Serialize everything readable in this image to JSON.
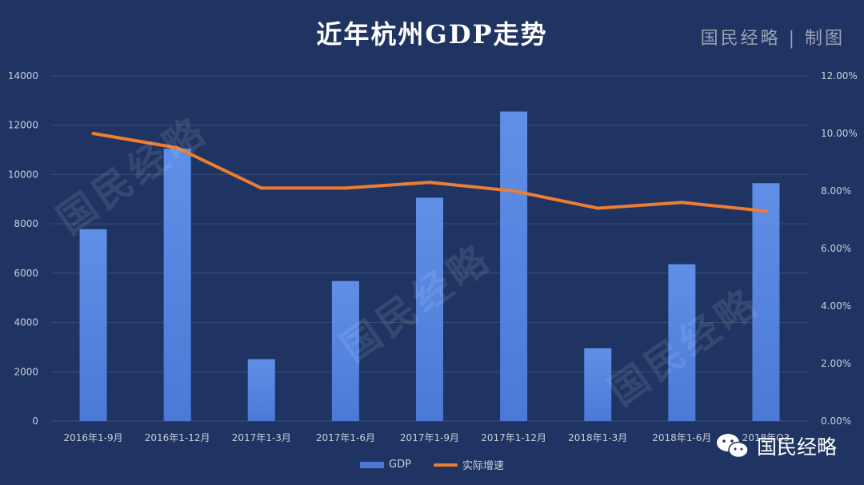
{
  "title": "近年杭州GDP走势",
  "brand_tag": "国民经略 | 制图",
  "footer_brand": "国民经略",
  "watermark_text": "国民经略",
  "colors": {
    "background": "#1f3462",
    "bar": "#4a7ad6",
    "line": "#ed7d31",
    "grid": "#3a5078",
    "axis_text": "#c8cfdc"
  },
  "chart_data": {
    "type": "bar",
    "categories": [
      "2016年1-9月",
      "2016年1-12月",
      "2017年1-3月",
      "2017年1-6月",
      "2017年1-9月",
      "2017年1-12月",
      "2018年1-3月",
      "2018年1-6月",
      "2018年Q3"
    ],
    "series": [
      {
        "name": "GDP",
        "type": "bar",
        "axis": "left",
        "values": [
          7780,
          11050,
          2510,
          5680,
          9060,
          12556,
          2950,
          6360,
          9650
        ]
      },
      {
        "name": "实际增速",
        "type": "line",
        "axis": "right",
        "values": [
          10.0,
          9.5,
          8.1,
          8.1,
          8.3,
          8.0,
          7.4,
          7.6,
          7.3
        ]
      }
    ],
    "y_left": {
      "min": 0,
      "max": 14000,
      "ticks": [
        "0",
        "2000",
        "4000",
        "6000",
        "8000",
        "10000",
        "12000",
        "14000"
      ]
    },
    "y_right": {
      "min": 0,
      "max": 12,
      "ticks": [
        "0.00%",
        "2.00%",
        "4.00%",
        "6.00%",
        "8.00%",
        "10.00%",
        "12.00%"
      ]
    },
    "grid": true,
    "legend_position": "bottom"
  }
}
